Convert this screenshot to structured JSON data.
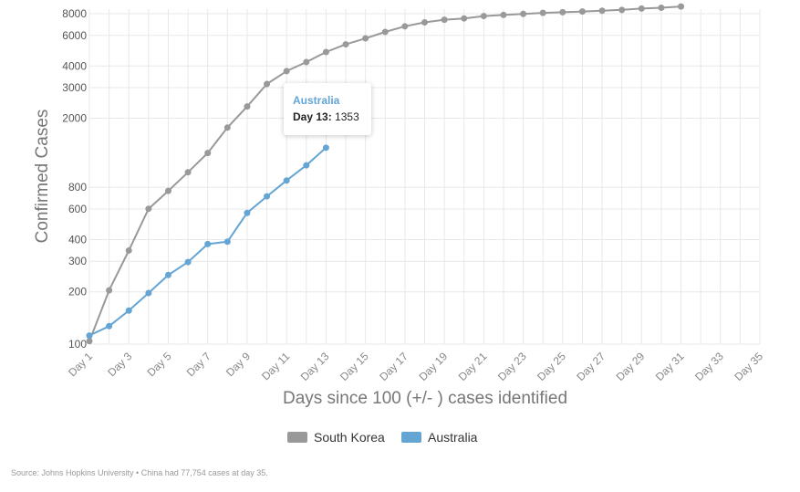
{
  "chart_data": {
    "type": "line",
    "y_scale": "log",
    "ylim": [
      100,
      8500
    ],
    "xlim": [
      1,
      35
    ],
    "ylabel": "Confirmed Cases",
    "xlabel": "Days since 100 (+/- ) cases identified",
    "y_ticks": [
      100,
      200,
      300,
      400,
      600,
      800,
      2000,
      3000,
      4000,
      6000,
      8000
    ],
    "y_tick_labels": [
      "100",
      "200",
      "300",
      "400",
      "600",
      "800",
      "2000",
      "3000",
      "4000",
      "6000",
      "8000"
    ],
    "x_ticks": [
      1,
      3,
      5,
      7,
      9,
      11,
      13,
      15,
      17,
      19,
      21,
      23,
      25,
      27,
      29,
      31,
      33,
      35
    ],
    "x_tick_labels": [
      "Day 1",
      "Day 3",
      "Day 5",
      "Day 7",
      "Day 9",
      "Day 11",
      "Day 13",
      "Day 15",
      "Day 17",
      "Day 19",
      "Day 21",
      "Day 23",
      "Day 25",
      "Day 27",
      "Day 29",
      "Day 31",
      "Day 33",
      "Day 35"
    ],
    "grid": true,
    "legend_position": "bottom-center",
    "series": [
      {
        "name": "South Korea",
        "color": "#999999",
        "x": [
          1,
          2,
          3,
          4,
          5,
          6,
          7,
          8,
          9,
          10,
          11,
          12,
          13,
          14,
          15,
          16,
          17,
          18,
          19,
          20,
          21,
          22,
          23,
          24,
          25,
          26,
          27,
          28,
          29,
          30,
          31
        ],
        "values": [
          104,
          204,
          346,
          602,
          763,
          977,
          1261,
          1766,
          2337,
          3150,
          3736,
          4212,
          4812,
          5328,
          5766,
          6284,
          6767,
          7134,
          7382,
          7513,
          7755,
          7869,
          7979,
          8086,
          8162,
          8236,
          8320,
          8413,
          8565,
          8652,
          8799
        ]
      },
      {
        "name": "Australia",
        "color": "#64a5d4",
        "x": [
          1,
          2,
          3,
          4,
          5,
          6,
          7,
          8,
          9,
          10,
          11,
          12,
          13
        ],
        "values": [
          112,
          127,
          156,
          197,
          250,
          297,
          377,
          389,
          570,
          710,
          876,
          1071,
          1353
        ]
      }
    ]
  },
  "tooltip": {
    "series_name": "Australia",
    "day_label": "Day 13:",
    "value": "1353"
  },
  "legend": {
    "items": [
      {
        "label": "South Korea",
        "color": "#999999"
      },
      {
        "label": "Australia",
        "color": "#64a5d4"
      }
    ]
  },
  "footer": {
    "source_text": "Source: Johns Hopkins University • China had 77,754 cases at day 35."
  }
}
